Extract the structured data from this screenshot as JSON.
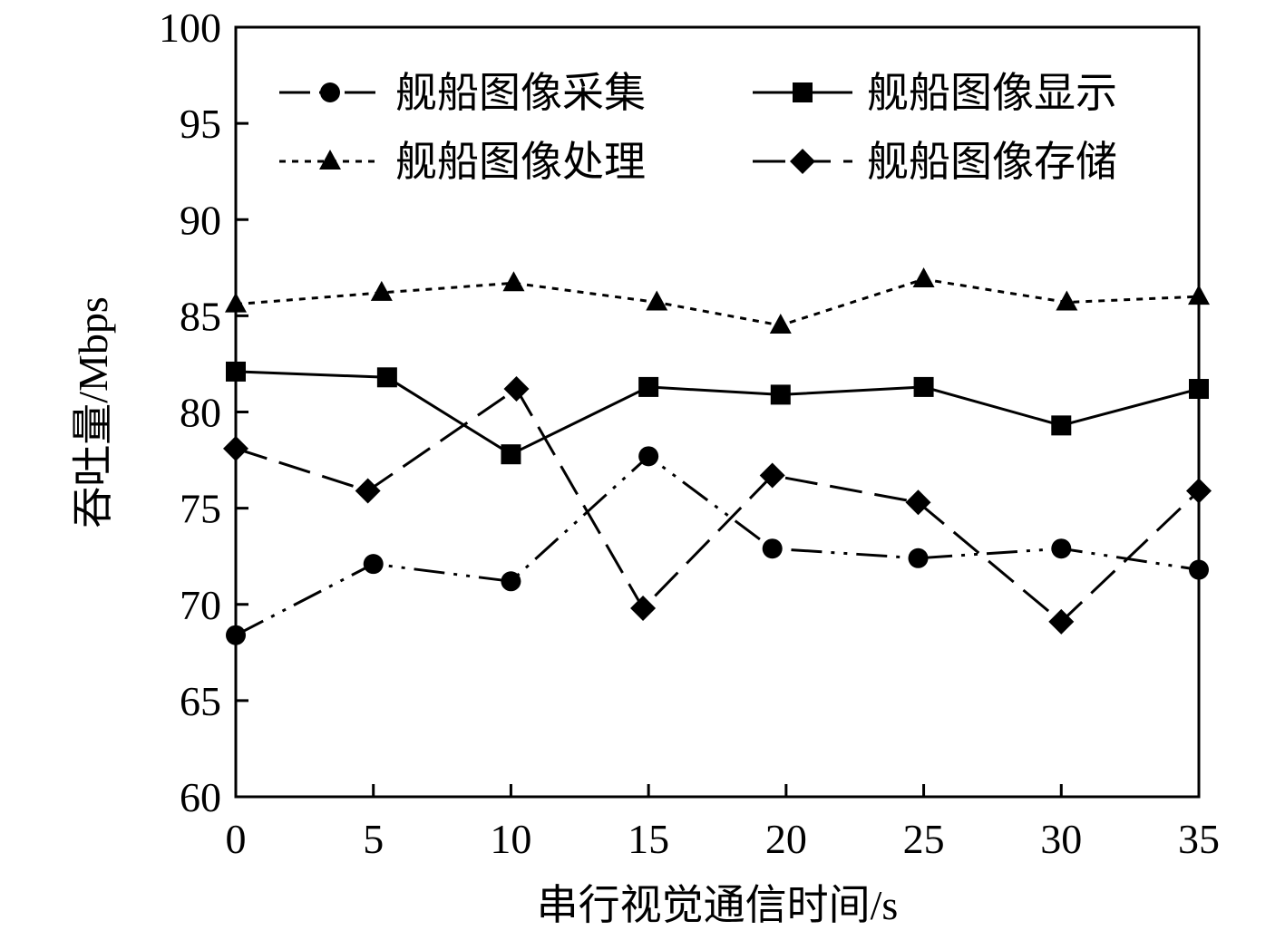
{
  "chart_data": {
    "type": "line",
    "title": "",
    "xlabel": "串行视觉通信时间/s",
    "ylabel": "吞吐量/Mbps",
    "xlim": [
      0,
      35
    ],
    "ylim": [
      60,
      100
    ],
    "xticks": [
      0,
      5,
      10,
      15,
      20,
      25,
      30,
      35
    ],
    "yticks": [
      60,
      65,
      70,
      75,
      80,
      85,
      90,
      95,
      100
    ],
    "grid": false,
    "legend_position": "top",
    "series": [
      {
        "name": "舰船图像采集",
        "marker": "circle",
        "line_style": "dash-dot-dot",
        "x": [
          0,
          5,
          10,
          15,
          19.5,
          24.8,
          30,
          35
        ],
        "values": [
          68.4,
          72.1,
          71.2,
          77.7,
          72.9,
          72.4,
          72.9,
          71.8
        ]
      },
      {
        "name": "舰船图像显示",
        "marker": "square",
        "line_style": "solid",
        "x": [
          0,
          5.5,
          10,
          15,
          19.8,
          25,
          30,
          35
        ],
        "values": [
          82.1,
          81.8,
          77.8,
          81.3,
          80.9,
          81.3,
          79.3,
          81.2
        ]
      },
      {
        "name": "舰船图像处理",
        "marker": "triangle",
        "line_style": "dotted",
        "x": [
          0,
          5.3,
          10.1,
          15.3,
          19.8,
          25,
          30.2,
          35
        ],
        "values": [
          85.6,
          86.2,
          86.7,
          85.7,
          84.5,
          86.9,
          85.7,
          86.0
        ]
      },
      {
        "name": "舰船图像存储",
        "marker": "diamond",
        "line_style": "dashed",
        "x": [
          0,
          4.8,
          10.2,
          14.8,
          19.5,
          24.8,
          30,
          35
        ],
        "values": [
          78.1,
          75.9,
          81.2,
          69.8,
          76.7,
          75.3,
          69.1,
          75.9
        ]
      }
    ]
  }
}
